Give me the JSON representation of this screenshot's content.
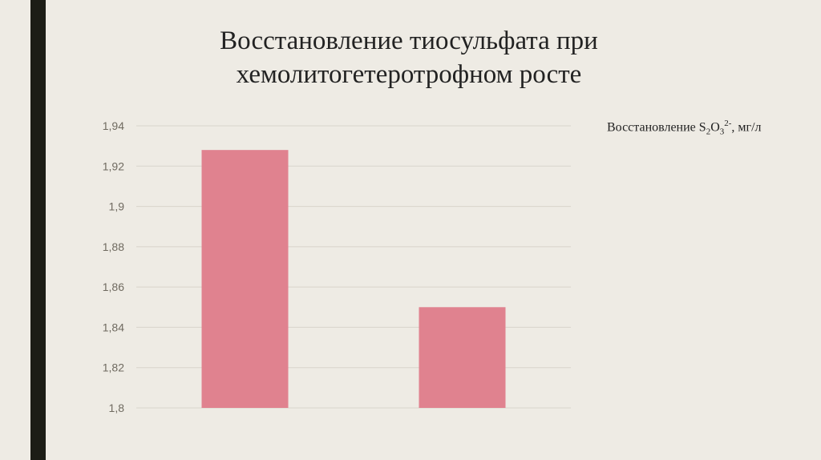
{
  "slide": {
    "accent_bar_color": "#1c1d16",
    "background": "#eeebe4"
  },
  "chart_data": {
    "type": "bar",
    "title": "Восстановление тиосульфата при хемолитогетеротрофном росте",
    "title_lines": [
      "Восстановление тиосульфата при",
      "хемолитогетеротрофном росте"
    ],
    "categories": [
      "",
      ""
    ],
    "series": [
      {
        "name": "Восстановление S2O3 2-, мг/л",
        "values": [
          1.928,
          1.85
        ],
        "color": "#e0828f"
      }
    ],
    "legend": {
      "prefix": "Восстановление S",
      "sub1": "2",
      "o": "O",
      "sub2": "3",
      "sup": "2-",
      "suffix": ", мг/л",
      "placement": "right"
    },
    "ylim": [
      1.8,
      1.94
    ],
    "yticks": [
      "1,8",
      "1,82",
      "1,84",
      "1,86",
      "1,88",
      "1,9",
      "1,92",
      "1,94"
    ],
    "grid": true,
    "xlabel": "",
    "ylabel": ""
  }
}
